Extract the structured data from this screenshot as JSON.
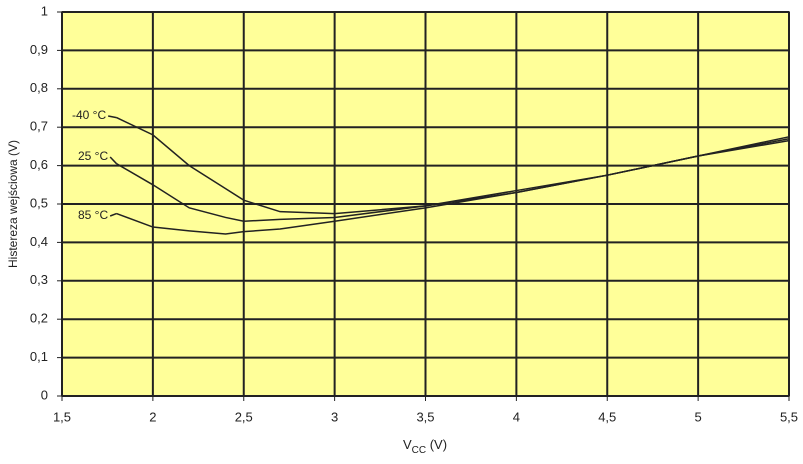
{
  "chart_data": {
    "type": "line",
    "ylabel": "Histereza wejściowa (V)",
    "xlabel_parts": [
      "V",
      "CC",
      " (V)"
    ],
    "x": [
      1.8,
      2.0,
      2.2,
      2.4,
      2.5,
      2.7,
      3.0,
      3.5,
      4.0,
      4.5,
      5.0,
      5.5
    ],
    "series": [
      {
        "name": "-40 °C",
        "color": "#222222",
        "values": [
          0.725,
          0.68,
          0.6,
          0.54,
          0.51,
          0.48,
          0.475,
          0.495,
          0.535,
          0.575,
          0.625,
          0.67
        ]
      },
      {
        "name": "25 °C",
        "color": "#222222",
        "values": [
          0.605,
          0.55,
          0.49,
          0.465,
          0.455,
          0.46,
          0.465,
          0.495,
          0.53,
          0.575,
          0.625,
          0.665
        ]
      },
      {
        "name": "85 °C",
        "color": "#222222",
        "values": [
          0.475,
          0.44,
          0.43,
          0.422,
          0.428,
          0.435,
          0.455,
          0.49,
          0.53,
          0.575,
          0.625,
          0.675
        ]
      }
    ],
    "xlim": [
      1.5,
      5.5
    ],
    "xticks": [
      {
        "value": 1.5,
        "label": "1,5"
      },
      2,
      {
        "value": 2.5,
        "label": "2,5"
      },
      3,
      {
        "value": 3.5,
        "label": "3,5"
      },
      4,
      {
        "value": 4.5,
        "label": "4,5"
      },
      5,
      {
        "value": 5.5,
        "label": "5,5"
      }
    ],
    "ylim": [
      0,
      1
    ],
    "yticks": [
      0,
      {
        "value": 0.1,
        "label": "0,1"
      },
      {
        "value": 0.2,
        "label": "0,2"
      },
      {
        "value": 0.3,
        "label": "0,3"
      },
      {
        "value": 0.4,
        "label": "0,4"
      },
      {
        "value": 0.5,
        "label": "0,5"
      },
      {
        "value": 0.6,
        "label": "0,6"
      },
      {
        "value": 0.7,
        "label": "0,7"
      },
      {
        "value": 0.8,
        "label": "0,8"
      },
      {
        "value": 0.9,
        "label": "0,9"
      },
      1
    ],
    "grid": true,
    "background": "#ffff99"
  }
}
